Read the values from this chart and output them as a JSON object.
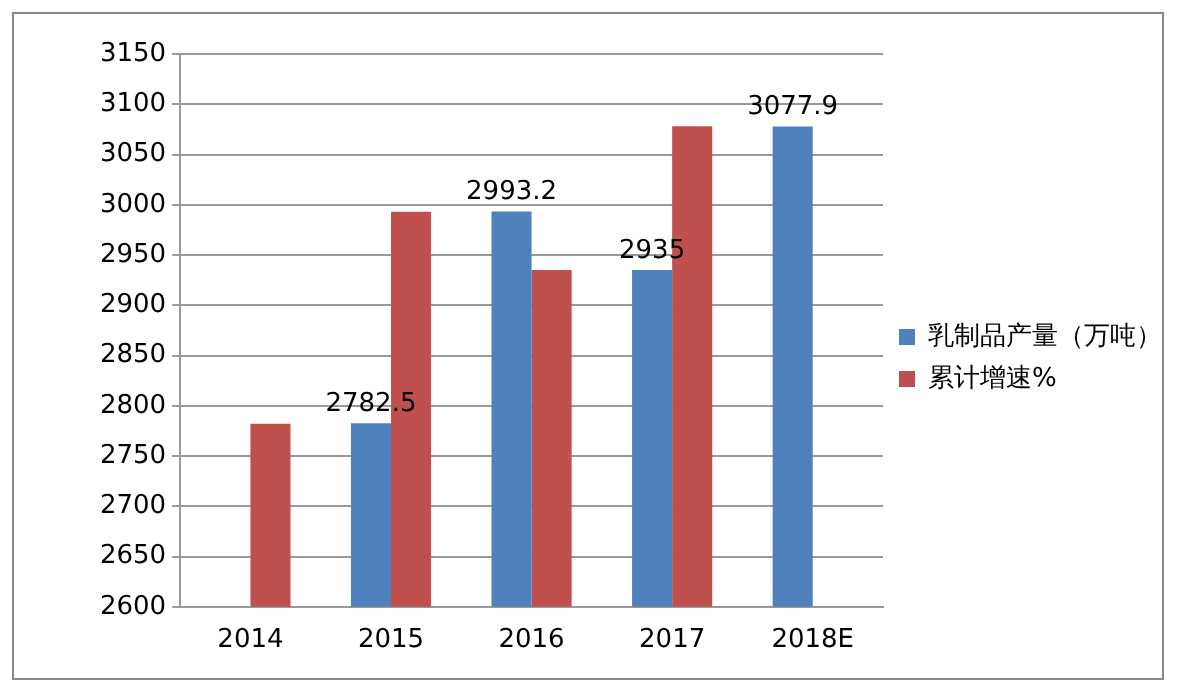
{
  "chart_data": {
    "type": "bar",
    "categories": [
      "2014",
      "2015",
      "2016",
      "2017",
      "2018E"
    ],
    "series": [
      {
        "name": "乳制品产量（万吨）",
        "color": "#4f81bd",
        "values": [
          null,
          2782.5,
          2993.2,
          2935,
          3077.9
        ],
        "value_labels": [
          null,
          "2782.5",
          "2993.2",
          "2935",
          "3077.9"
        ]
      },
      {
        "name": "累计增速%",
        "color": "#c0504d",
        "values": [
          2782,
          2993,
          2935,
          3078,
          null
        ]
      }
    ],
    "ylim": [
      2600,
      3150
    ],
    "yticks": [
      2600,
      2650,
      2700,
      2750,
      2800,
      2850,
      2900,
      2950,
      3000,
      3050,
      3100,
      3150
    ],
    "grid": "y",
    "legend": "right"
  }
}
